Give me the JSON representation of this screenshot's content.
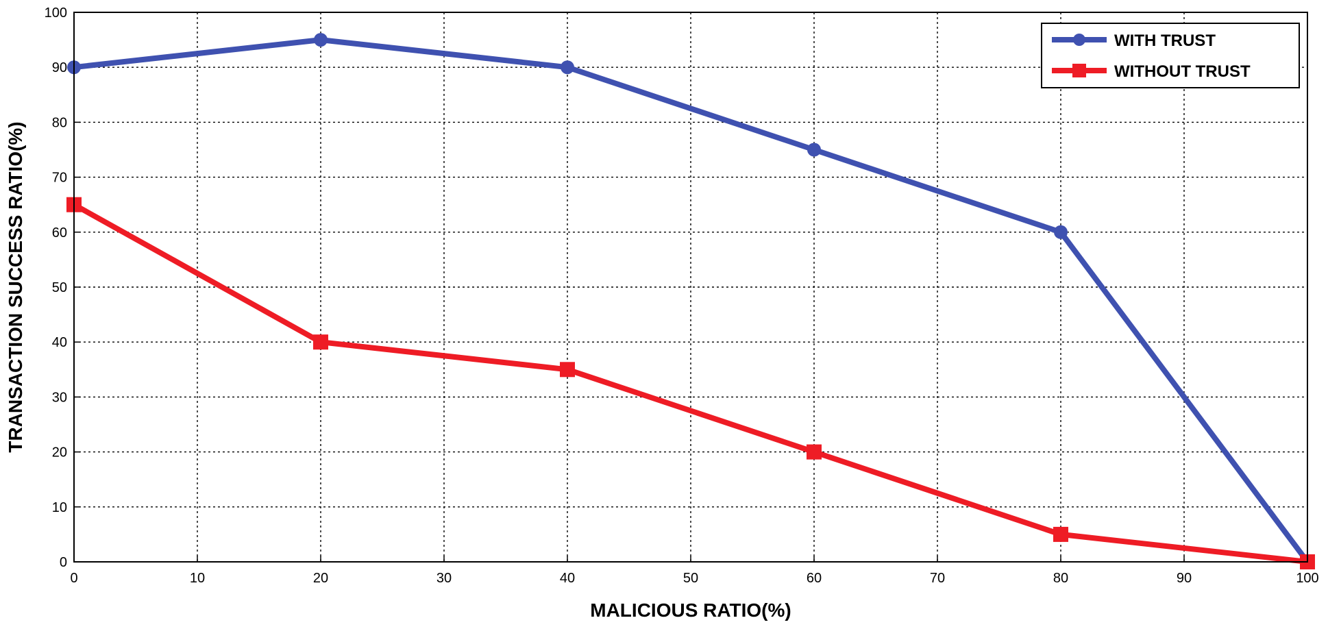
{
  "chart_data": {
    "type": "line",
    "title": "",
    "xlabel": "MALICIOUS RATIO(%)",
    "ylabel": "TRANSACTION SUCCESS RATIO(%)",
    "xlim": [
      0,
      100
    ],
    "ylim": [
      0,
      100
    ],
    "xticks": [
      0,
      10,
      20,
      30,
      40,
      50,
      60,
      70,
      80,
      90,
      100
    ],
    "yticks": [
      0,
      10,
      20,
      30,
      40,
      50,
      60,
      70,
      80,
      90,
      100
    ],
    "grid": true,
    "legend_position": "top-right",
    "series": [
      {
        "name": "WITH TRUST",
        "color": "#3f51b0",
        "marker": "circle",
        "x": [
          0,
          20,
          40,
          60,
          80,
          100
        ],
        "y": [
          90,
          95,
          90,
          75,
          60,
          0
        ]
      },
      {
        "name": "WITHOUT TRUST",
        "color": "#ee1c25",
        "marker": "square",
        "x": [
          0,
          20,
          40,
          60,
          80,
          100
        ],
        "y": [
          65,
          40,
          35,
          20,
          5,
          0
        ]
      }
    ]
  }
}
